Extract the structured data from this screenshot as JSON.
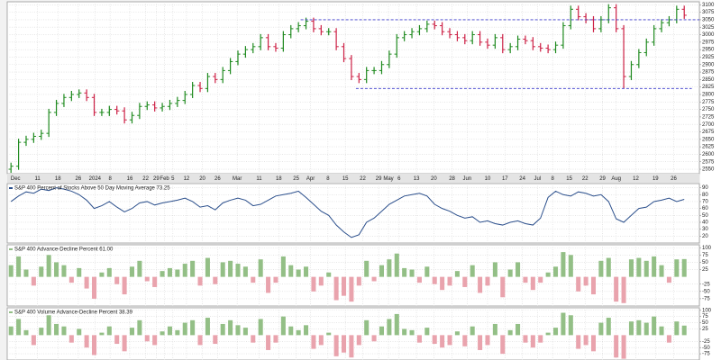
{
  "chart_data": [
    {
      "type": "ohlc",
      "xlim": [
        -0.5,
        91
      ],
      "ylim": [
        2535,
        3110
      ],
      "yticks": [
        2550,
        2575,
        2600,
        2625,
        2650,
        2675,
        2700,
        2725,
        2750,
        2775,
        2800,
        2825,
        2850,
        2875,
        2900,
        2925,
        2950,
        2975,
        3000,
        3025,
        3050,
        3075,
        3100
      ],
      "xticks": [
        {
          "value": 0.6,
          "label": "Dec"
        },
        {
          "value": 3.5,
          "label": "11"
        },
        {
          "value": 6.2,
          "label": "18"
        },
        {
          "value": 8.9,
          "label": "26"
        },
        {
          "value": 11.1,
          "label": "2024"
        },
        {
          "value": 13.1,
          "label": "8"
        },
        {
          "value": 15.7,
          "label": "16"
        },
        {
          "value": 17.8,
          "label": "22"
        },
        {
          "value": 19.2,
          "label": "29"
        },
        {
          "value": 20.3,
          "label": "Feb"
        },
        {
          "value": 21.4,
          "label": "5"
        },
        {
          "value": 23.2,
          "label": "12"
        },
        {
          "value": 25.3,
          "label": "20"
        },
        {
          "value": 27.3,
          "label": "26"
        },
        {
          "value": 29.9,
          "label": "Mar"
        },
        {
          "value": 32.8,
          "label": "11"
        },
        {
          "value": 35.4,
          "label": "18"
        },
        {
          "value": 37.7,
          "label": "25"
        },
        {
          "value": 39.6,
          "label": "Apr"
        },
        {
          "value": 41.9,
          "label": "8"
        },
        {
          "value": 44.2,
          "label": "15"
        },
        {
          "value": 46.5,
          "label": "22"
        },
        {
          "value": 48.6,
          "label": "29"
        },
        {
          "value": 49.9,
          "label": "May"
        },
        {
          "value": 51.3,
          "label": "6"
        },
        {
          "value": 53.6,
          "label": "13"
        },
        {
          "value": 55.9,
          "label": "20"
        },
        {
          "value": 58.3,
          "label": "28"
        },
        {
          "value": 60.3,
          "label": "Jun"
        },
        {
          "value": 63.0,
          "label": "10"
        },
        {
          "value": 65.3,
          "label": "17"
        },
        {
          "value": 67.6,
          "label": "24"
        },
        {
          "value": 69.6,
          "label": "Jul"
        },
        {
          "value": 71.6,
          "label": "8"
        },
        {
          "value": 73.8,
          "label": "15"
        },
        {
          "value": 75.9,
          "label": "22"
        },
        {
          "value": 78.2,
          "label": "29"
        },
        {
          "value": 80.0,
          "label": "Aug"
        },
        {
          "value": 82.6,
          "label": "12"
        },
        {
          "value": 85.2,
          "label": "19"
        },
        {
          "value": 87.6,
          "label": "26"
        }
      ],
      "grid": true,
      "up_color": "#1f8a1f",
      "down_color": "#cc1f44",
      "reference_lines": [
        {
          "value": 3050,
          "from": 38.3,
          "to": 91,
          "color": "#3a3acc"
        },
        {
          "value": 2820,
          "from": 45.6,
          "to": 90,
          "color": "#3a3acc"
        }
      ],
      "open": [
        2550,
        2560,
        2640,
        2650,
        2660,
        2670,
        2740,
        2770,
        2790,
        2800,
        2805,
        2790,
        2740,
        2740,
        2750,
        2745,
        2715,
        2730,
        2760,
        2765,
        2755,
        2760,
        2770,
        2780,
        2800,
        2830,
        2820,
        2860,
        2850,
        2880,
        2910,
        2935,
        2950,
        2960,
        2990,
        2960,
        2955,
        3000,
        3020,
        3030,
        3045,
        3020,
        3010,
        3010,
        2960,
        2920,
        2860,
        2850,
        2880,
        2880,
        2900,
        2935,
        2990,
        3000,
        3010,
        3020,
        3035,
        3030,
        3010,
        3000,
        2990,
        2980,
        3000,
        2975,
        2965,
        2990,
        2950,
        2960,
        2985,
        2980,
        2960,
        2955,
        2950,
        2965,
        3030,
        3085,
        3060,
        3050,
        3020,
        3050,
        3090,
        3020,
        2860,
        2900,
        2940,
        2975,
        3020,
        3040,
        3050,
        3085
      ],
      "high": [
        2572,
        2652,
        2662,
        2672,
        2682,
        2752,
        2782,
        2802,
        2812,
        2817,
        2817,
        2802,
        2752,
        2762,
        2762,
        2757,
        2742,
        2772,
        2777,
        2777,
        2772,
        2782,
        2792,
        2812,
        2842,
        2842,
        2872,
        2872,
        2892,
        2922,
        2947,
        2962,
        2972,
        3002,
        3002,
        2972,
        3012,
        3032,
        3042,
        3057,
        3057,
        3032,
        3022,
        3022,
        2972,
        2932,
        2872,
        2892,
        2892,
        2912,
        2947,
        3002,
        3012,
        3022,
        3032,
        3047,
        3047,
        3042,
        3022,
        3012,
        3002,
        3012,
        3012,
        2987,
        3002,
        3002,
        2972,
        2997,
        2997,
        2992,
        2972,
        2967,
        2977,
        3042,
        3097,
        3097,
        3072,
        3062,
        3062,
        3102,
        3102,
        3032,
        2912,
        2952,
        2987,
        3032,
        3052,
        3062,
        3097,
        3097
      ],
      "low": [
        2538,
        2548,
        2628,
        2638,
        2648,
        2658,
        2728,
        2758,
        2778,
        2788,
        2778,
        2728,
        2728,
        2728,
        2733,
        2703,
        2703,
        2718,
        2748,
        2743,
        2743,
        2748,
        2758,
        2768,
        2788,
        2808,
        2808,
        2838,
        2838,
        2868,
        2898,
        2923,
        2938,
        2948,
        2948,
        2943,
        2943,
        2988,
        3008,
        3018,
        3008,
        2998,
        2998,
        2948,
        2908,
        2848,
        2838,
        2838,
        2868,
        2868,
        2888,
        2923,
        2978,
        2988,
        2998,
        3008,
        3018,
        2998,
        2988,
        2978,
        2968,
        2968,
        2963,
        2953,
        2953,
        2938,
        2938,
        2948,
        2968,
        2948,
        2943,
        2938,
        2938,
        2953,
        3018,
        3048,
        3038,
        3008,
        3008,
        3038,
        3008,
        2820,
        2848,
        2888,
        2928,
        2963,
        3008,
        3028,
        3038,
        3053
      ],
      "close": [
        2560,
        2640,
        2650,
        2660,
        2670,
        2740,
        2770,
        2790,
        2800,
        2805,
        2790,
        2740,
        2740,
        2750,
        2745,
        2715,
        2730,
        2760,
        2765,
        2755,
        2760,
        2770,
        2780,
        2800,
        2830,
        2820,
        2860,
        2850,
        2880,
        2910,
        2935,
        2950,
        2960,
        2990,
        2960,
        2955,
        3000,
        3020,
        3030,
        3045,
        3020,
        3010,
        3010,
        2960,
        2920,
        2860,
        2850,
        2880,
        2880,
        2900,
        2935,
        2990,
        3000,
        3010,
        3020,
        3035,
        3030,
        3010,
        3000,
        2990,
        2980,
        3000,
        2975,
        2965,
        2990,
        2950,
        2960,
        2985,
        2980,
        2960,
        2955,
        2950,
        2965,
        3030,
        3085,
        3060,
        3050,
        3020,
        3050,
        3090,
        3020,
        2860,
        2900,
        2940,
        2975,
        3020,
        3040,
        3050,
        3085,
        3065
      ]
    },
    {
      "type": "line",
      "title": "S&P 400 Percent of Stocks Above 50 Day Moving Average 73.25",
      "color": "#2b4f8c",
      "xlim": [
        -0.5,
        91
      ],
      "ylim": [
        10,
        96
      ],
      "yticks": [
        20,
        30,
        40,
        50,
        60,
        70,
        80,
        90
      ],
      "grid": true,
      "values": [
        70,
        78,
        84,
        82,
        88,
        86,
        90,
        88,
        85,
        80,
        72,
        60,
        64,
        70,
        62,
        55,
        60,
        68,
        70,
        65,
        68,
        70,
        72,
        75,
        70,
        62,
        64,
        58,
        68,
        72,
        75,
        72,
        64,
        66,
        72,
        78,
        80,
        82,
        85,
        76,
        66,
        56,
        50,
        36,
        26,
        18,
        22,
        40,
        46,
        56,
        66,
        72,
        78,
        80,
        82,
        78,
        66,
        60,
        56,
        50,
        46,
        48,
        40,
        42,
        38,
        36,
        40,
        42,
        38,
        36,
        46,
        76,
        85,
        80,
        78,
        84,
        82,
        78,
        80,
        70,
        45,
        40,
        50,
        60,
        62,
        70,
        72,
        75,
        70,
        73.25
      ]
    },
    {
      "type": "bar",
      "title": "S&P 400 Advance-Decline Percent 61.00",
      "positive_color": "#93bf86",
      "negative_color": "#e9a3ad",
      "xlim": [
        -0.5,
        91
      ],
      "ylim": [
        -100,
        110
      ],
      "yticks": [
        -75,
        -50,
        -25,
        25,
        50,
        75,
        100
      ],
      "grid": true,
      "values": [
        40,
        70,
        25,
        -30,
        35,
        75,
        50,
        40,
        -20,
        30,
        -40,
        -75,
        15,
        30,
        -25,
        -60,
        35,
        55,
        -15,
        -35,
        20,
        30,
        25,
        45,
        55,
        -30,
        65,
        -25,
        50,
        55,
        45,
        35,
        -20,
        60,
        -55,
        -20,
        70,
        40,
        25,
        35,
        -50,
        -30,
        15,
        -80,
        -65,
        -85,
        -30,
        55,
        -15,
        40,
        60,
        80,
        30,
        25,
        -20,
        35,
        -25,
        -45,
        -30,
        20,
        -35,
        40,
        -55,
        -30,
        50,
        -70,
        25,
        50,
        -20,
        -45,
        -20,
        15,
        35,
        85,
        75,
        -50,
        -30,
        -60,
        55,
        65,
        -85,
        -90,
        60,
        65,
        55,
        70,
        40,
        -20,
        60,
        61
      ]
    },
    {
      "type": "bar",
      "title": "S&P 400 Volume Advance-Decline Percent 38.39",
      "positive_color": "#93bf86",
      "negative_color": "#e9a3ad",
      "xlim": [
        -0.5,
        91
      ],
      "ylim": [
        -100,
        110
      ],
      "yticks": [
        -75,
        -50,
        -25,
        25,
        50,
        75,
        100
      ],
      "grid": true,
      "values": [
        35,
        65,
        20,
        -40,
        30,
        80,
        45,
        35,
        -30,
        25,
        -50,
        -80,
        10,
        35,
        -35,
        -65,
        30,
        60,
        -25,
        -40,
        15,
        35,
        20,
        50,
        60,
        -40,
        70,
        -35,
        45,
        60,
        40,
        30,
        -30,
        65,
        -60,
        -30,
        75,
        35,
        20,
        40,
        -55,
        -40,
        10,
        -85,
        -70,
        -90,
        -40,
        60,
        -25,
        35,
        65,
        85,
        25,
        20,
        -30,
        30,
        -35,
        -50,
        -40,
        15,
        -45,
        35,
        -60,
        -40,
        45,
        -75,
        20,
        45,
        -30,
        -50,
        -30,
        10,
        30,
        90,
        80,
        -55,
        -40,
        -65,
        50,
        70,
        -90,
        -95,
        55,
        60,
        50,
        75,
        35,
        -30,
        55,
        38.39
      ]
    }
  ]
}
